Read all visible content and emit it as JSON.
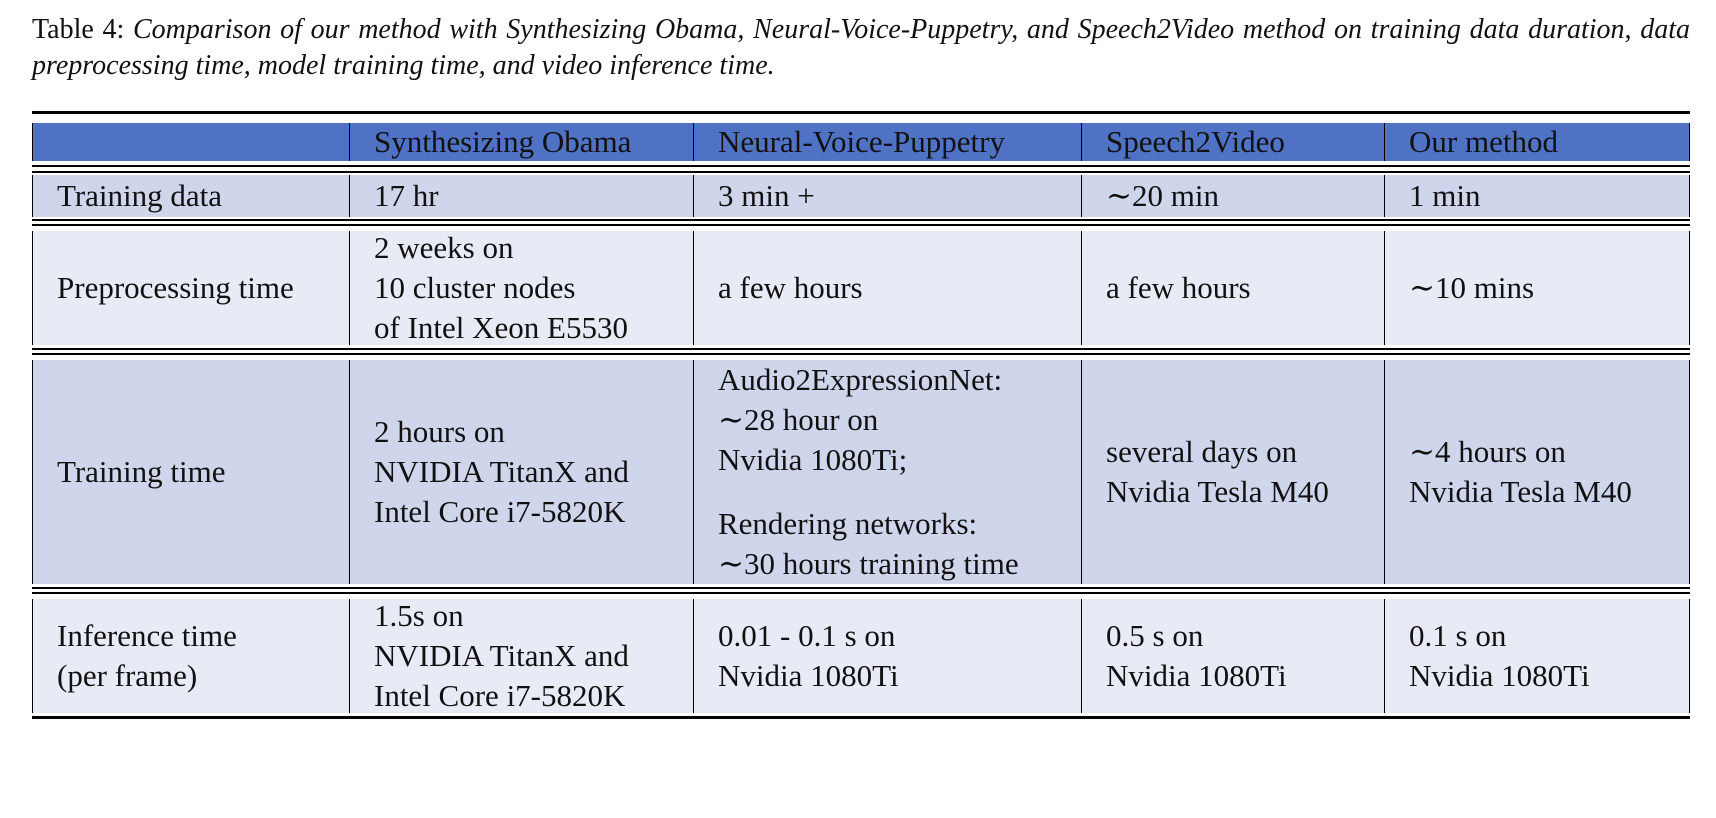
{
  "caption": {
    "label": "Table 4:",
    "text": "Comparison of our method with Synthesizing Obama, Neural-Voice-Puppetry, and Speech2Video method on training data duration, data preprocessing time, model training time, and video inference time."
  },
  "table": {
    "headers": [
      "",
      "Synthesizing Obama",
      "Neural-Voice-Puppetry",
      "Speech2Video",
      "Our method"
    ],
    "rows": [
      {
        "label": [
          "Training data"
        ],
        "cells": [
          [
            "17 hr"
          ],
          [
            "3 min +"
          ],
          [
            "∼20 min"
          ],
          [
            "1 min"
          ]
        ]
      },
      {
        "label": [
          "Preprocessing time"
        ],
        "cells": [
          [
            "2 weeks on",
            "10 cluster nodes",
            "of Intel Xeon E5530"
          ],
          [
            "a few hours"
          ],
          [
            "a few hours"
          ],
          [
            "∼10 mins"
          ]
        ]
      },
      {
        "label": [
          "Training time"
        ],
        "cells": [
          [
            "2 hours on",
            "NVIDIA TitanX and",
            "Intel Core i7-5820K"
          ],
          [
            "Audio2ExpressionNet:",
            "∼28 hour on",
            "Nvidia 1080Ti;",
            "",
            "Rendering networks:",
            "∼30 hours training time"
          ],
          [
            "several days on",
            "Nvidia Tesla M40"
          ],
          [
            "∼4 hours on",
            "Nvidia Tesla M40"
          ]
        ]
      },
      {
        "label": [
          "Inference time",
          "(per frame)"
        ],
        "cells": [
          [
            "1.5s on",
            "NVIDIA TitanX and",
            "Intel Core i7-5820K"
          ],
          [
            "0.01 - 0.1 s on",
            "Nvidia 1080Ti"
          ],
          [
            "0.5 s on",
            "Nvidia 1080Ti"
          ],
          [
            "0.1 s on",
            "Nvidia 1080Ti"
          ]
        ]
      }
    ]
  },
  "colors": {
    "header_bg": "#4f72c4",
    "row_dark": "#cfd6ec",
    "row_light": "#e8ebf5"
  }
}
